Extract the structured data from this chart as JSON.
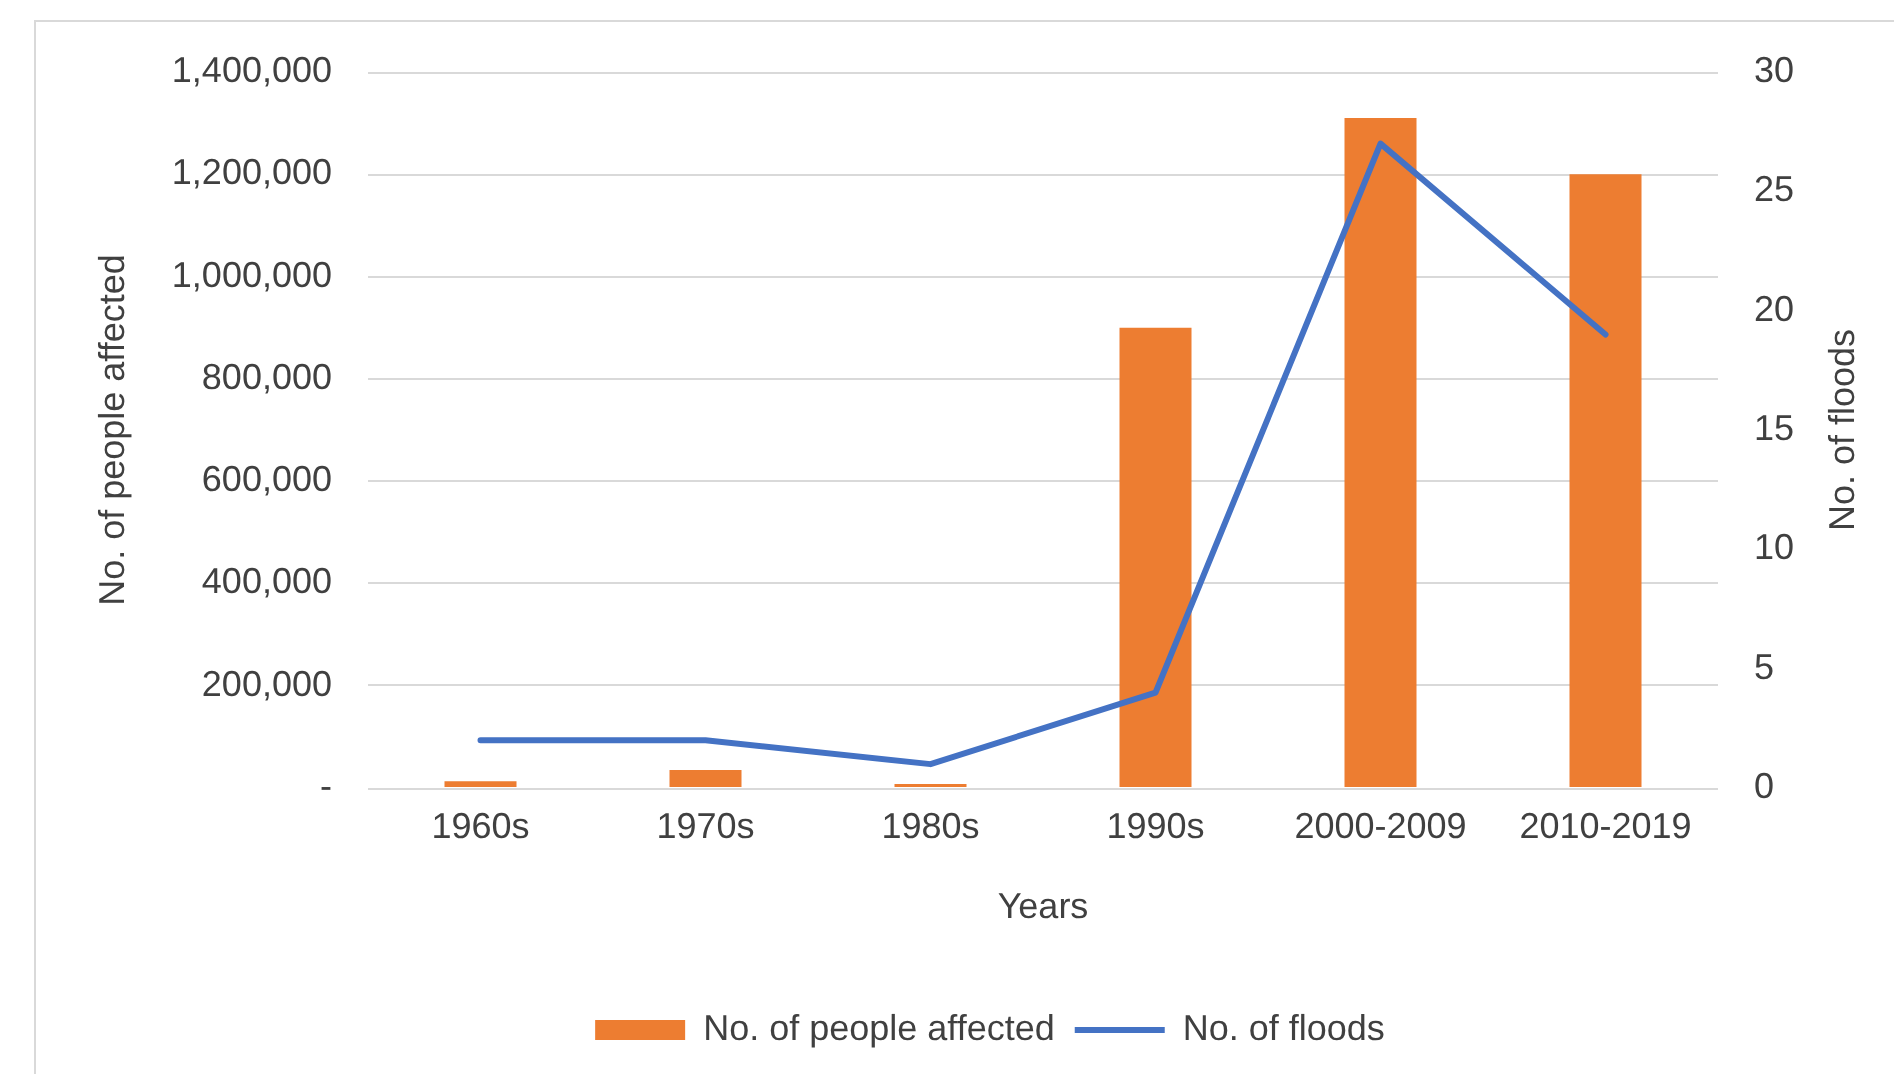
{
  "chart_data": {
    "type": "bar",
    "xlabel": "Years",
    "ylabel": "No. of people affected",
    "y2label": "No. of floods",
    "categories": [
      "1960s",
      "1970s",
      "1980s",
      "1990s",
      "2000-2009",
      "2010-2019"
    ],
    "series": [
      {
        "name": "No. of people affected",
        "color": "#ed7d31",
        "values": [
          13000,
          35000,
          8000,
          900000,
          1310000,
          1200000
        ]
      },
      {
        "name": "No. of floods",
        "type": "line",
        "axis": "y2",
        "color": "#4472c4",
        "values": [
          2,
          2,
          1,
          4,
          27,
          19
        ]
      }
    ],
    "ylim": [
      0,
      1400000
    ],
    "yticks": [
      {
        "value": 0,
        "label": "-"
      },
      {
        "value": 200000,
        "label": "200,000"
      },
      {
        "value": 400000,
        "label": "400,000"
      },
      {
        "value": 600000,
        "label": "600,000"
      },
      {
        "value": 800000,
        "label": "800,000"
      },
      {
        "value": 1000000,
        "label": "1,000,000"
      },
      {
        "value": 1200000,
        "label": "1,200,000"
      },
      {
        "value": 1400000,
        "label": "1,400,000"
      }
    ],
    "y2lim": [
      0,
      30
    ],
    "y2ticks": [
      0,
      5,
      10,
      15,
      20,
      25,
      30
    ],
    "grid": "y",
    "legend": "bottom"
  }
}
